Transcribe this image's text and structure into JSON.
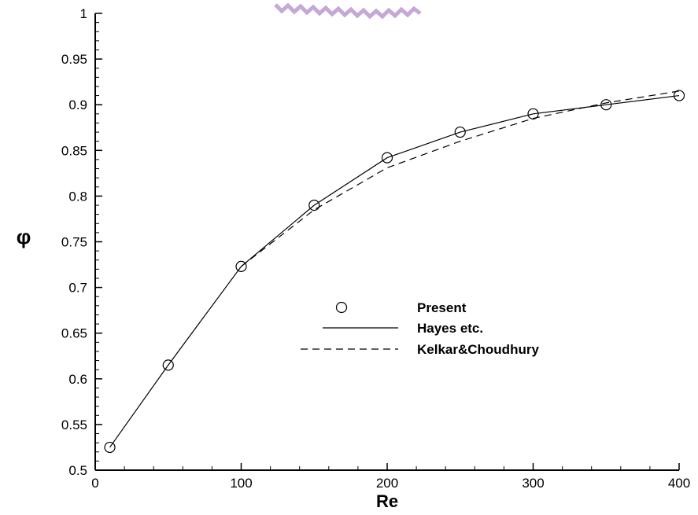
{
  "chart_data": {
    "type": "line",
    "xlabel": "Re",
    "ylabel": "φ",
    "xlim": [
      0,
      400
    ],
    "ylim": [
      0.5,
      1
    ],
    "x_ticks": [
      "0",
      "100",
      "200",
      "300",
      "400"
    ],
    "y_ticks": [
      "0.5",
      "0.55",
      "0.6",
      "0.65",
      "0.7",
      "0.75",
      "0.8",
      "0.85",
      "0.9",
      "0.95",
      "1"
    ],
    "grid": false,
    "legend_position": "center-right",
    "series": [
      {
        "name": "Present",
        "style": "circle-markers",
        "x": [
          10,
          50,
          100,
          150,
          200,
          250,
          300,
          350,
          400
        ],
        "y": [
          0.525,
          0.615,
          0.723,
          0.79,
          0.842,
          0.87,
          0.89,
          0.9,
          0.91
        ]
      },
      {
        "name": "Hayes etc.",
        "style": "solid",
        "x": [
          10,
          50,
          100,
          150,
          200,
          250,
          300,
          350,
          400
        ],
        "y": [
          0.525,
          0.615,
          0.723,
          0.79,
          0.842,
          0.87,
          0.89,
          0.9,
          0.91
        ]
      },
      {
        "name": "Kelkar&Choudhury",
        "style": "dashed",
        "x": [
          100,
          150,
          200,
          250,
          300,
          350,
          400
        ],
        "y": [
          0.723,
          0.785,
          0.831,
          0.86,
          0.885,
          0.902,
          0.915
        ]
      }
    ]
  }
}
